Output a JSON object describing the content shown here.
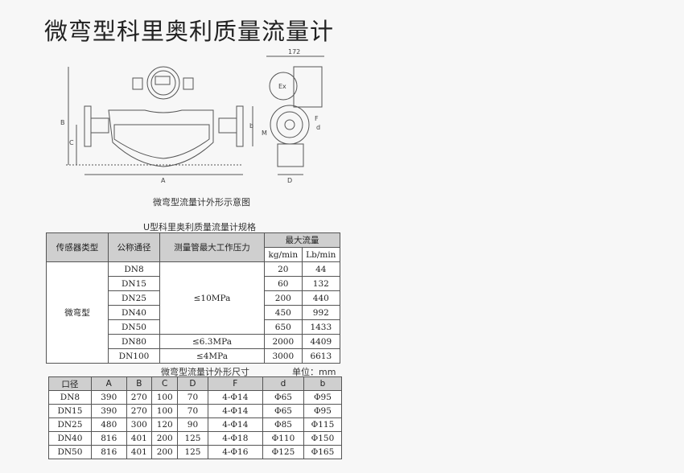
{
  "title": "微弯型科里奥利质量流量计",
  "diagram": {
    "caption": "微弯型流量计外形示意图",
    "labels": {
      "A": "A",
      "B": "B",
      "C": "C",
      "b": "b",
      "D": "D",
      "F": "F",
      "d": "d",
      "M": "M",
      "width": "172",
      "ex": "Ex"
    }
  },
  "spec_table": {
    "title": "U型科里奥利质量流量计规格",
    "headers": [
      "传感器类型",
      "公称通径",
      "测量管最大工作压力",
      "最大流量"
    ],
    "subheaders": [
      "kg/min",
      "Lb/min"
    ],
    "sensor_type": "微弯型",
    "rows": [
      {
        "dn": "DN8",
        "kg": "20",
        "lb": "44"
      },
      {
        "dn": "DN15",
        "kg": "60",
        "lb": "132"
      },
      {
        "dn": "DN25",
        "kg": "200",
        "lb": "440"
      },
      {
        "dn": "DN40",
        "kg": "450",
        "lb": "992"
      },
      {
        "dn": "DN50",
        "kg": "650",
        "lb": "1433"
      },
      {
        "dn": "DN80",
        "kg": "2000",
        "lb": "4409"
      },
      {
        "dn": "DN100",
        "kg": "3000",
        "lb": "6613"
      }
    ],
    "pressures": [
      "≤10MPa",
      "≤6.3MPa",
      "≤4MPa"
    ]
  },
  "dim_table": {
    "title": "微弯型流量计外形尺寸",
    "unit": "单位：mm",
    "headers": [
      "口径",
      "A",
      "B",
      "C",
      "D",
      "F",
      "d",
      "b"
    ],
    "rows": [
      [
        "DN8",
        "390",
        "270",
        "100",
        "70",
        "4-Φ14",
        "Φ65",
        "Φ95"
      ],
      [
        "DN15",
        "390",
        "270",
        "100",
        "70",
        "4-Φ14",
        "Φ65",
        "Φ95"
      ],
      [
        "DN25",
        "480",
        "300",
        "120",
        "90",
        "4-Φ14",
        "Φ85",
        "Φ115"
      ],
      [
        "DN40",
        "816",
        "401",
        "200",
        "125",
        "4-Φ18",
        "Φ110",
        "Φ150"
      ],
      [
        "DN50",
        "816",
        "401",
        "200",
        "125",
        "4-Φ16",
        "Φ125",
        "Φ165"
      ]
    ]
  }
}
